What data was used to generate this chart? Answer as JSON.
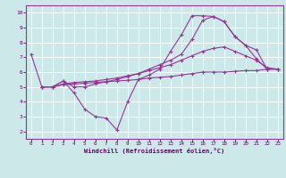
{
  "xlabel": "Windchill (Refroidissement éolien,°C)",
  "bg_color": "#cce8e8",
  "grid_color": "#ffffff",
  "line_color": "#993399",
  "xmin": -0.5,
  "xmax": 23.5,
  "ymin": 1.5,
  "ymax": 10.5,
  "xticks": [
    0,
    1,
    2,
    3,
    4,
    5,
    6,
    7,
    8,
    9,
    10,
    11,
    12,
    13,
    14,
    15,
    16,
    17,
    18,
    19,
    20,
    21,
    22,
    23
  ],
  "yticks": [
    2,
    3,
    4,
    5,
    6,
    7,
    8,
    9,
    10
  ],
  "line1_x": [
    0,
    1,
    2,
    3,
    4,
    5,
    6,
    7,
    8,
    9,
    10,
    11,
    12,
    13,
    14,
    15,
    16,
    17,
    18,
    19,
    20,
    21,
    22,
    23
  ],
  "line1_y": [
    7.2,
    5.0,
    5.0,
    5.4,
    4.6,
    3.5,
    3.0,
    2.9,
    2.1,
    4.0,
    5.5,
    5.8,
    6.2,
    7.4,
    8.5,
    9.8,
    9.8,
    9.75,
    9.4,
    8.4,
    7.8,
    7.5,
    6.2,
    6.2
  ],
  "line2_x": [
    1,
    2,
    3,
    4,
    5,
    6,
    7,
    8,
    9,
    10,
    11,
    12,
    13,
    14,
    15,
    16,
    17,
    18,
    19,
    20,
    21,
    22,
    23
  ],
  "line2_y": [
    5.0,
    5.0,
    5.15,
    5.2,
    5.25,
    5.3,
    5.35,
    5.4,
    5.45,
    5.5,
    5.6,
    5.65,
    5.7,
    5.8,
    5.9,
    6.0,
    6.0,
    6.0,
    6.05,
    6.1,
    6.1,
    6.2,
    6.2
  ],
  "line3_x": [
    1,
    2,
    3,
    4,
    5,
    6,
    7,
    8,
    9,
    10,
    11,
    12,
    13,
    14,
    15,
    16,
    17,
    18,
    19,
    20,
    21,
    22,
    23
  ],
  "line3_y": [
    5.0,
    5.0,
    5.2,
    5.3,
    5.35,
    5.4,
    5.5,
    5.6,
    5.75,
    5.9,
    6.1,
    6.3,
    6.5,
    6.8,
    7.1,
    7.4,
    7.6,
    7.7,
    7.4,
    7.1,
    6.8,
    6.3,
    6.2
  ],
  "line4_x": [
    1,
    2,
    3,
    4,
    5,
    6,
    7,
    8,
    9,
    10,
    11,
    12,
    13,
    14,
    15,
    16,
    17,
    18,
    19,
    20,
    21,
    22,
    23
  ],
  "line4_y": [
    5.0,
    5.0,
    5.4,
    5.0,
    5.0,
    5.2,
    5.35,
    5.5,
    5.7,
    5.9,
    6.2,
    6.5,
    6.8,
    7.2,
    8.2,
    9.5,
    9.75,
    9.4,
    8.4,
    7.8,
    6.9,
    6.2,
    6.2
  ]
}
